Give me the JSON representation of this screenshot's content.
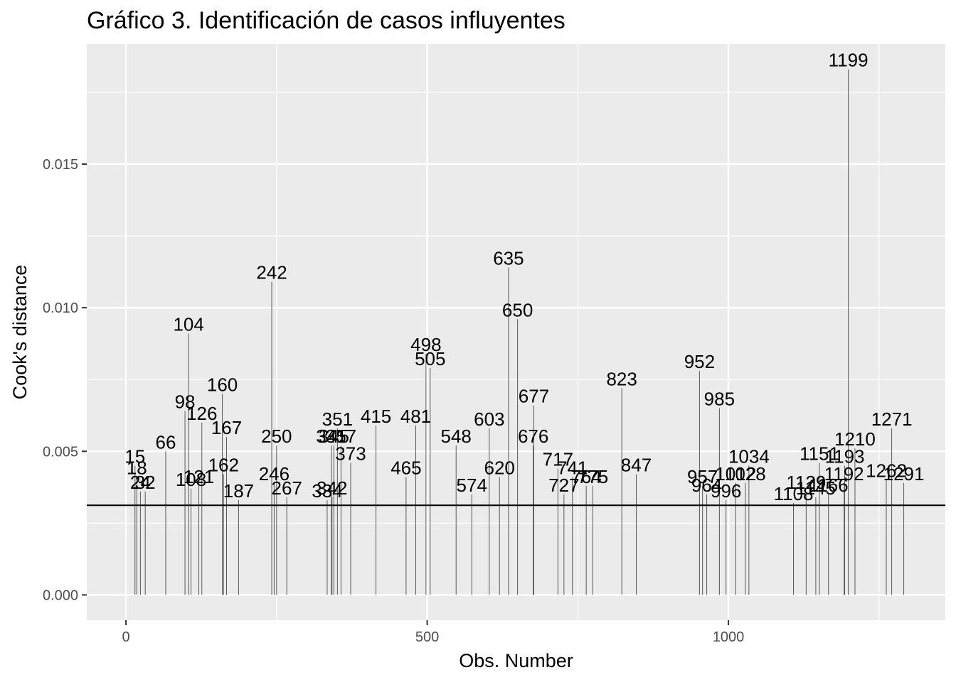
{
  "chart_data": {
    "type": "bar",
    "title": "Gráfico 3. Identificación de casos influyentes",
    "xlabel": "Obs. Number",
    "ylabel": "Cook's distance",
    "xlim": [
      -65,
      1360
    ],
    "ylim": [
      -0.00088,
      0.01918
    ],
    "x_ticks": [
      0,
      500,
      1000
    ],
    "x_tick_labels": [
      "0",
      "500",
      "1000"
    ],
    "y_ticks": [
      0,
      0.005,
      0.01,
      0.015
    ],
    "y_tick_labels": [
      "0.000",
      "0.005",
      "0.010",
      "0.015"
    ],
    "grid": true,
    "threshold": 0.00312,
    "labeled_points": [
      {
        "x": 15,
        "y": 0.0045,
        "label": "15"
      },
      {
        "x": 18,
        "y": 0.0041,
        "label": "18"
      },
      {
        "x": 24,
        "y": 0.0036,
        "label": "24"
      },
      {
        "x": 32,
        "y": 0.0036,
        "label": "32"
      },
      {
        "x": 66,
        "y": 0.005,
        "label": "66"
      },
      {
        "x": 98,
        "y": 0.0064,
        "label": "98"
      },
      {
        "x": 104,
        "y": 0.0091,
        "label": "104"
      },
      {
        "x": 108,
        "y": 0.0037,
        "label": "108"
      },
      {
        "x": 121,
        "y": 0.0038,
        "label": "121"
      },
      {
        "x": 126,
        "y": 0.006,
        "label": "126"
      },
      {
        "x": 160,
        "y": 0.007,
        "label": "160"
      },
      {
        "x": 162,
        "y": 0.0042,
        "label": "162"
      },
      {
        "x": 167,
        "y": 0.0055,
        "label": "167"
      },
      {
        "x": 187,
        "y": 0.0033,
        "label": "187"
      },
      {
        "x": 242,
        "y": 0.0109,
        "label": "242"
      },
      {
        "x": 246,
        "y": 0.0039,
        "label": "246"
      },
      {
        "x": 250,
        "y": 0.0052,
        "label": "250"
      },
      {
        "x": 267,
        "y": 0.0034,
        "label": "267"
      },
      {
        "x": 334,
        "y": 0.0033,
        "label": "334"
      },
      {
        "x": 341,
        "y": 0.0052,
        "label": "341"
      },
      {
        "x": 342,
        "y": 0.0034,
        "label": "342"
      },
      {
        "x": 345,
        "y": 0.0052,
        "label": "345"
      },
      {
        "x": 351,
        "y": 0.0058,
        "label": "351"
      },
      {
        "x": 357,
        "y": 0.0052,
        "label": "357"
      },
      {
        "x": 373,
        "y": 0.0046,
        "label": "373"
      },
      {
        "x": 415,
        "y": 0.0059,
        "label": "415"
      },
      {
        "x": 465,
        "y": 0.0041,
        "label": "465"
      },
      {
        "x": 481,
        "y": 0.0059,
        "label": "481"
      },
      {
        "x": 498,
        "y": 0.0084,
        "label": "498"
      },
      {
        "x": 505,
        "y": 0.0079,
        "label": "505"
      },
      {
        "x": 548,
        "y": 0.0052,
        "label": "548"
      },
      {
        "x": 574,
        "y": 0.0035,
        "label": "574"
      },
      {
        "x": 603,
        "y": 0.0058,
        "label": "603"
      },
      {
        "x": 620,
        "y": 0.0041,
        "label": "620"
      },
      {
        "x": 635,
        "y": 0.0114,
        "label": "635"
      },
      {
        "x": 650,
        "y": 0.0096,
        "label": "650"
      },
      {
        "x": 676,
        "y": 0.0052,
        "label": "676"
      },
      {
        "x": 677,
        "y": 0.0066,
        "label": "677"
      },
      {
        "x": 717,
        "y": 0.0044,
        "label": "717"
      },
      {
        "x": 727,
        "y": 0.0035,
        "label": "727"
      },
      {
        "x": 741,
        "y": 0.0041,
        "label": "741"
      },
      {
        "x": 764,
        "y": 0.0038,
        "label": "764"
      },
      {
        "x": 775,
        "y": 0.0038,
        "label": "775"
      },
      {
        "x": 823,
        "y": 0.0072,
        "label": "823"
      },
      {
        "x": 847,
        "y": 0.0042,
        "label": "847"
      },
      {
        "x": 952,
        "y": 0.0078,
        "label": "952"
      },
      {
        "x": 957,
        "y": 0.0038,
        "label": "957"
      },
      {
        "x": 964,
        "y": 0.0035,
        "label": "964"
      },
      {
        "x": 985,
        "y": 0.0065,
        "label": "985"
      },
      {
        "x": 996,
        "y": 0.0033,
        "label": "996"
      },
      {
        "x": 1012,
        "y": 0.0039,
        "label": "1012"
      },
      {
        "x": 1028,
        "y": 0.0039,
        "label": "1028"
      },
      {
        "x": 1034,
        "y": 0.0045,
        "label": "1034"
      },
      {
        "x": 1108,
        "y": 0.0032,
        "label": "1108"
      },
      {
        "x": 1129,
        "y": 0.0036,
        "label": "1129"
      },
      {
        "x": 1145,
        "y": 0.0034,
        "label": "1145"
      },
      {
        "x": 1151,
        "y": 0.0046,
        "label": "1151"
      },
      {
        "x": 1166,
        "y": 0.0035,
        "label": "1166"
      },
      {
        "x": 1192,
        "y": 0.0039,
        "label": "1192"
      },
      {
        "x": 1193,
        "y": 0.0045,
        "label": "1193"
      },
      {
        "x": 1199,
        "y": 0.0183,
        "label": "1199"
      },
      {
        "x": 1210,
        "y": 0.0051,
        "label": "1210"
      },
      {
        "x": 1262,
        "y": 0.004,
        "label": "1262"
      },
      {
        "x": 1271,
        "y": 0.0058,
        "label": "1271"
      },
      {
        "x": 1291,
        "y": 0.0039,
        "label": "1291"
      }
    ]
  },
  "colors": {
    "panel_background": "#ebebeb",
    "grid_major": "#ffffff",
    "bars": "#595959",
    "threshold_line": "#000000",
    "tick_text": "#4d4d4d"
  }
}
